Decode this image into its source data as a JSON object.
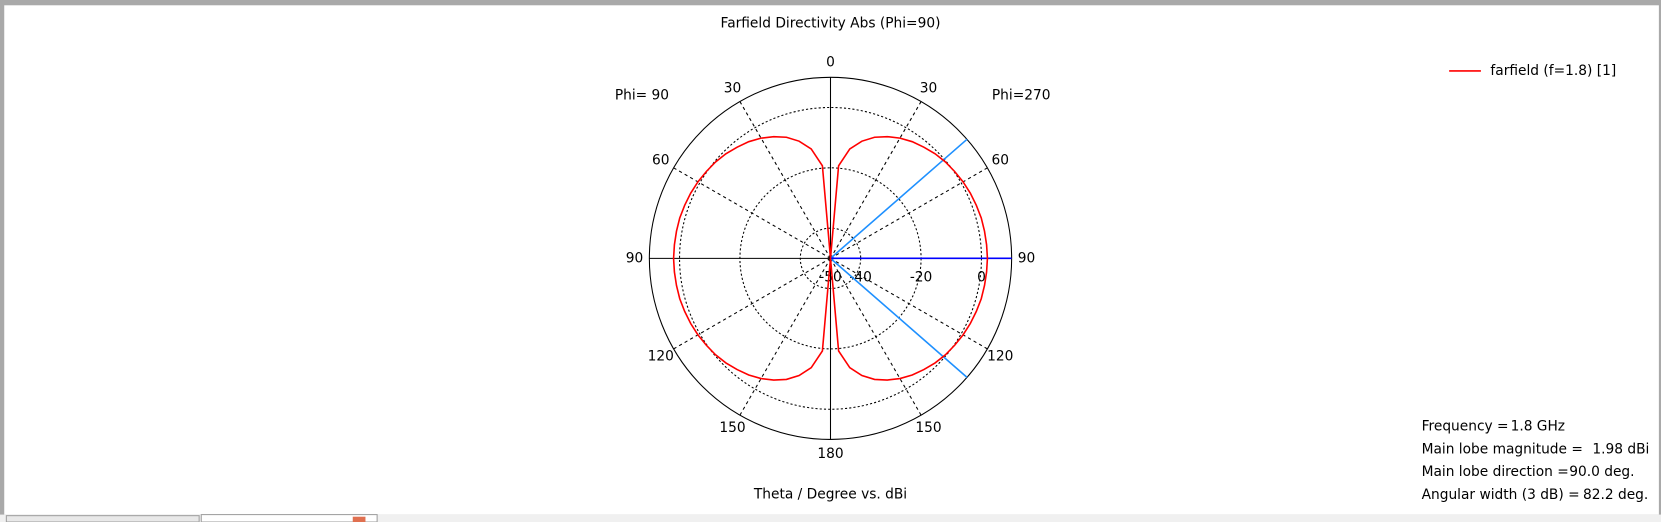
{
  "chart_data": {
    "type": "polar",
    "title": "Farfield Directivity Abs (Phi=90)",
    "annotations": [
      "Phi= 90",
      "Phi=270"
    ],
    "axis_label": "Theta / Degree vs. dBi",
    "rlim": [
      -50,
      10
    ],
    "rticks": [
      -50,
      -40,
      -20,
      0
    ],
    "thetaticks": [
      0,
      30,
      60,
      90,
      120,
      150,
      180,
      {
        "value": 210,
        "label": "150"
      },
      {
        "value": 240,
        "label": "120"
      },
      {
        "value": 270,
        "label": "90"
      },
      {
        "value": 300,
        "label": "60"
      },
      {
        "value": 330,
        "label": "30"
      }
    ],
    "x": [
      0,
      5,
      10,
      15,
      20,
      25,
      30,
      35,
      40,
      45,
      50,
      55,
      60,
      65,
      70,
      75,
      80,
      85,
      90,
      95,
      100,
      105,
      110,
      115,
      120,
      125,
      130,
      135,
      140,
      145,
      150,
      155,
      160,
      165,
      170,
      175,
      180,
      185,
      190,
      195,
      200,
      205,
      210,
      215,
      220,
      225,
      230,
      235,
      240,
      245,
      250,
      255,
      260,
      265,
      270,
      275,
      280,
      285,
      290,
      295,
      300,
      305,
      310,
      315,
      320,
      325,
      330,
      335,
      340,
      345,
      350,
      355
    ],
    "series": [
      {
        "name": "farfield (f=1.8) [1]",
        "color": "#ff0000",
        "values": [
          -50,
          -19.2,
          -13.2,
          -9.8,
          -7.3,
          -5.5,
          -4.0,
          -2.8,
          -1.9,
          -1.0,
          -0.3,
          0.2,
          0.7,
          1.1,
          1.4,
          1.7,
          1.8,
          1.9,
          1.98,
          1.9,
          1.8,
          1.7,
          1.4,
          1.1,
          0.7,
          0.2,
          -0.3,
          -1.0,
          -1.9,
          -2.8,
          -4.0,
          -5.5,
          -7.3,
          -9.8,
          -13.2,
          -19.2,
          -50,
          -19.2,
          -13.2,
          -9.8,
          -7.3,
          -5.5,
          -4.0,
          -2.8,
          -1.9,
          -1.0,
          -0.3,
          0.2,
          0.7,
          1.1,
          1.4,
          1.7,
          1.8,
          1.9,
          1.98,
          1.9,
          1.8,
          1.7,
          1.4,
          1.1,
          0.7,
          0.2,
          -0.3,
          -1.0,
          -1.9,
          -2.8,
          -4.0,
          -5.5,
          -7.3,
          -9.8,
          -13.2,
          -19.2
        ]
      }
    ],
    "legend": "upper right",
    "main_lobe_color": "#0000ff",
    "beamwidth_color": "#1e90ff",
    "info": [
      {
        "label": "Frequency =",
        "value": 1.8,
        "value_label": "1.8 GHz"
      },
      {
        "label": "Main lobe magnitude =",
        "value": 1.98,
        "value_label": "1.98 dBi"
      },
      {
        "label": "Main lobe direction =",
        "value": 90.0,
        "value_label": "90.0 deg."
      },
      {
        "label": "Angular width (3 dB) =",
        "value": 82.2,
        "value_label": "82.2 deg."
      }
    ]
  }
}
